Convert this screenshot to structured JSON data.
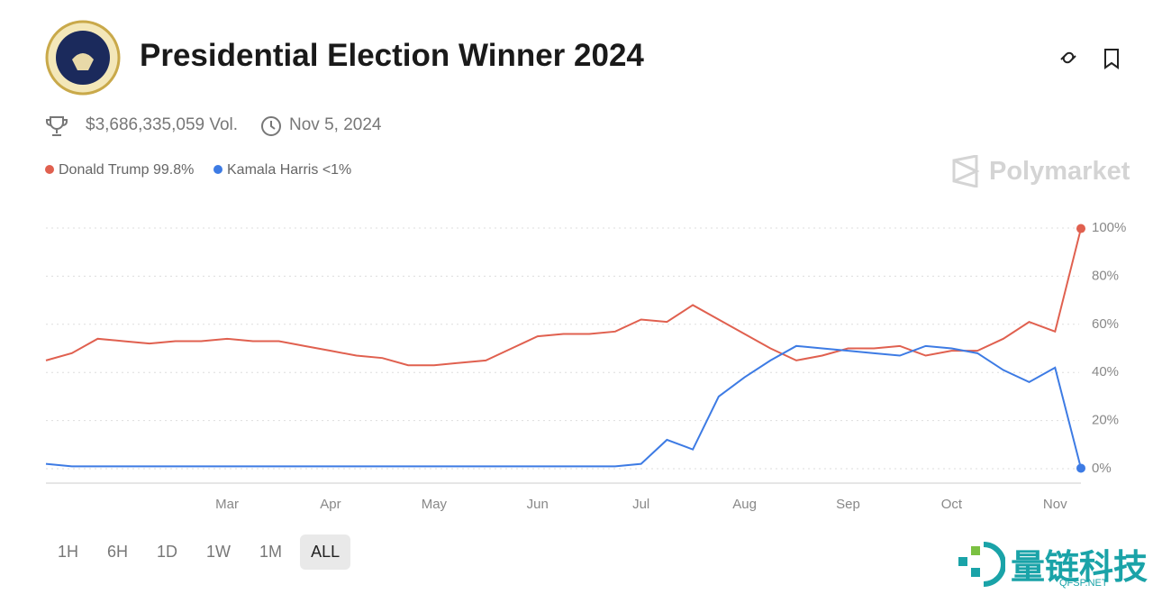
{
  "header": {
    "title": "Presidential Election Winner 2024",
    "volume": "$3,686,335,059 Vol.",
    "date": "Nov 5, 2024",
    "brand": "Polymarket"
  },
  "timeframes": [
    "1H",
    "6H",
    "1D",
    "1W",
    "1M",
    "ALL"
  ],
  "active_timeframe": 5,
  "watermark": {
    "name": "量链科技",
    "site": "QFSP.NET"
  },
  "chart_data": {
    "type": "line",
    "categories": [
      null,
      null,
      null,
      null,
      null,
      null,
      null,
      "Mar",
      null,
      null,
      null,
      "Apr",
      null,
      null,
      null,
      "May",
      null,
      null,
      null,
      "Jun",
      null,
      null,
      null,
      "Jul",
      null,
      null,
      null,
      "Aug",
      null,
      null,
      null,
      "Sep",
      null,
      null,
      null,
      "Oct",
      null,
      null,
      null,
      "Nov",
      null
    ],
    "series": [
      {
        "name": "Donald Trump",
        "value_label": "99.8%",
        "color": "#e0604f",
        "values": [
          45,
          48,
          54,
          53,
          52,
          53,
          53,
          54,
          53,
          53,
          51,
          49,
          47,
          46,
          43,
          43,
          44,
          45,
          50,
          55,
          56,
          56,
          57,
          62,
          61,
          68,
          62,
          56,
          50,
          45,
          47,
          50,
          50,
          51,
          47,
          49,
          49,
          54,
          61,
          57,
          99.8
        ]
      },
      {
        "name": "Kamala Harris",
        "value_label": "<1%",
        "color": "#3d7be4",
        "values": [
          2,
          1,
          1,
          1,
          1,
          1,
          1,
          1,
          1,
          1,
          1,
          1,
          1,
          1,
          1,
          1,
          1,
          1,
          1,
          1,
          1,
          1,
          1,
          2,
          12,
          8,
          30,
          38,
          45,
          51,
          50,
          49,
          48,
          47,
          51,
          50,
          48,
          41,
          36,
          42,
          0.2
        ]
      }
    ],
    "ylim": [
      0,
      100
    ],
    "yticks": [
      {
        "value": 0,
        "label": "0%"
      },
      {
        "value": 20,
        "label": "20%"
      },
      {
        "value": 40,
        "label": "40%"
      },
      {
        "value": 60,
        "label": "60%"
      },
      {
        "value": 80,
        "label": "80%"
      },
      {
        "value": 100,
        "label": "100%"
      }
    ],
    "grid": true
  }
}
